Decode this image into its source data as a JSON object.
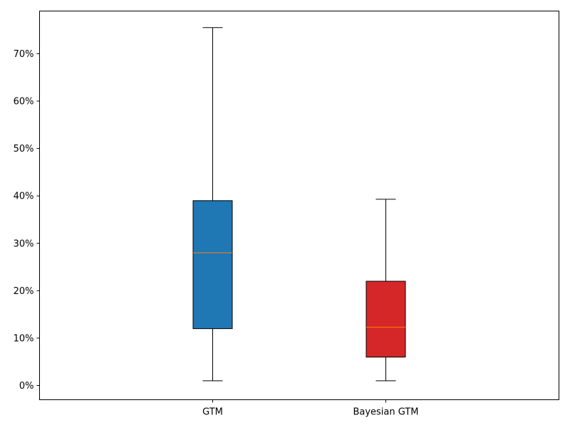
{
  "chart_data": {
    "type": "box",
    "title": "",
    "xlabel": "",
    "ylabel": "",
    "ylim": [
      -3,
      79
    ],
    "y_ticks": [
      0,
      10,
      20,
      30,
      40,
      50,
      60,
      70
    ],
    "y_tick_labels": [
      "0%",
      "10%",
      "20%",
      "30%",
      "40%",
      "50%",
      "60%",
      "70%"
    ],
    "categories": [
      "GTM",
      "Bayesian GTM"
    ],
    "series": [
      {
        "category": "GTM",
        "whisker_low": 1,
        "q1": 12,
        "median": 28,
        "q3": 39,
        "whisker_high": 75.5,
        "fill": "#1f77b4"
      },
      {
        "category": "Bayesian GTM",
        "whisker_low": 1,
        "q1": 6,
        "median": 12.3,
        "q3": 22,
        "whisker_high": 39.3,
        "fill": "#d62728"
      }
    ],
    "median_color": "#ff7f0e",
    "grid": false
  }
}
